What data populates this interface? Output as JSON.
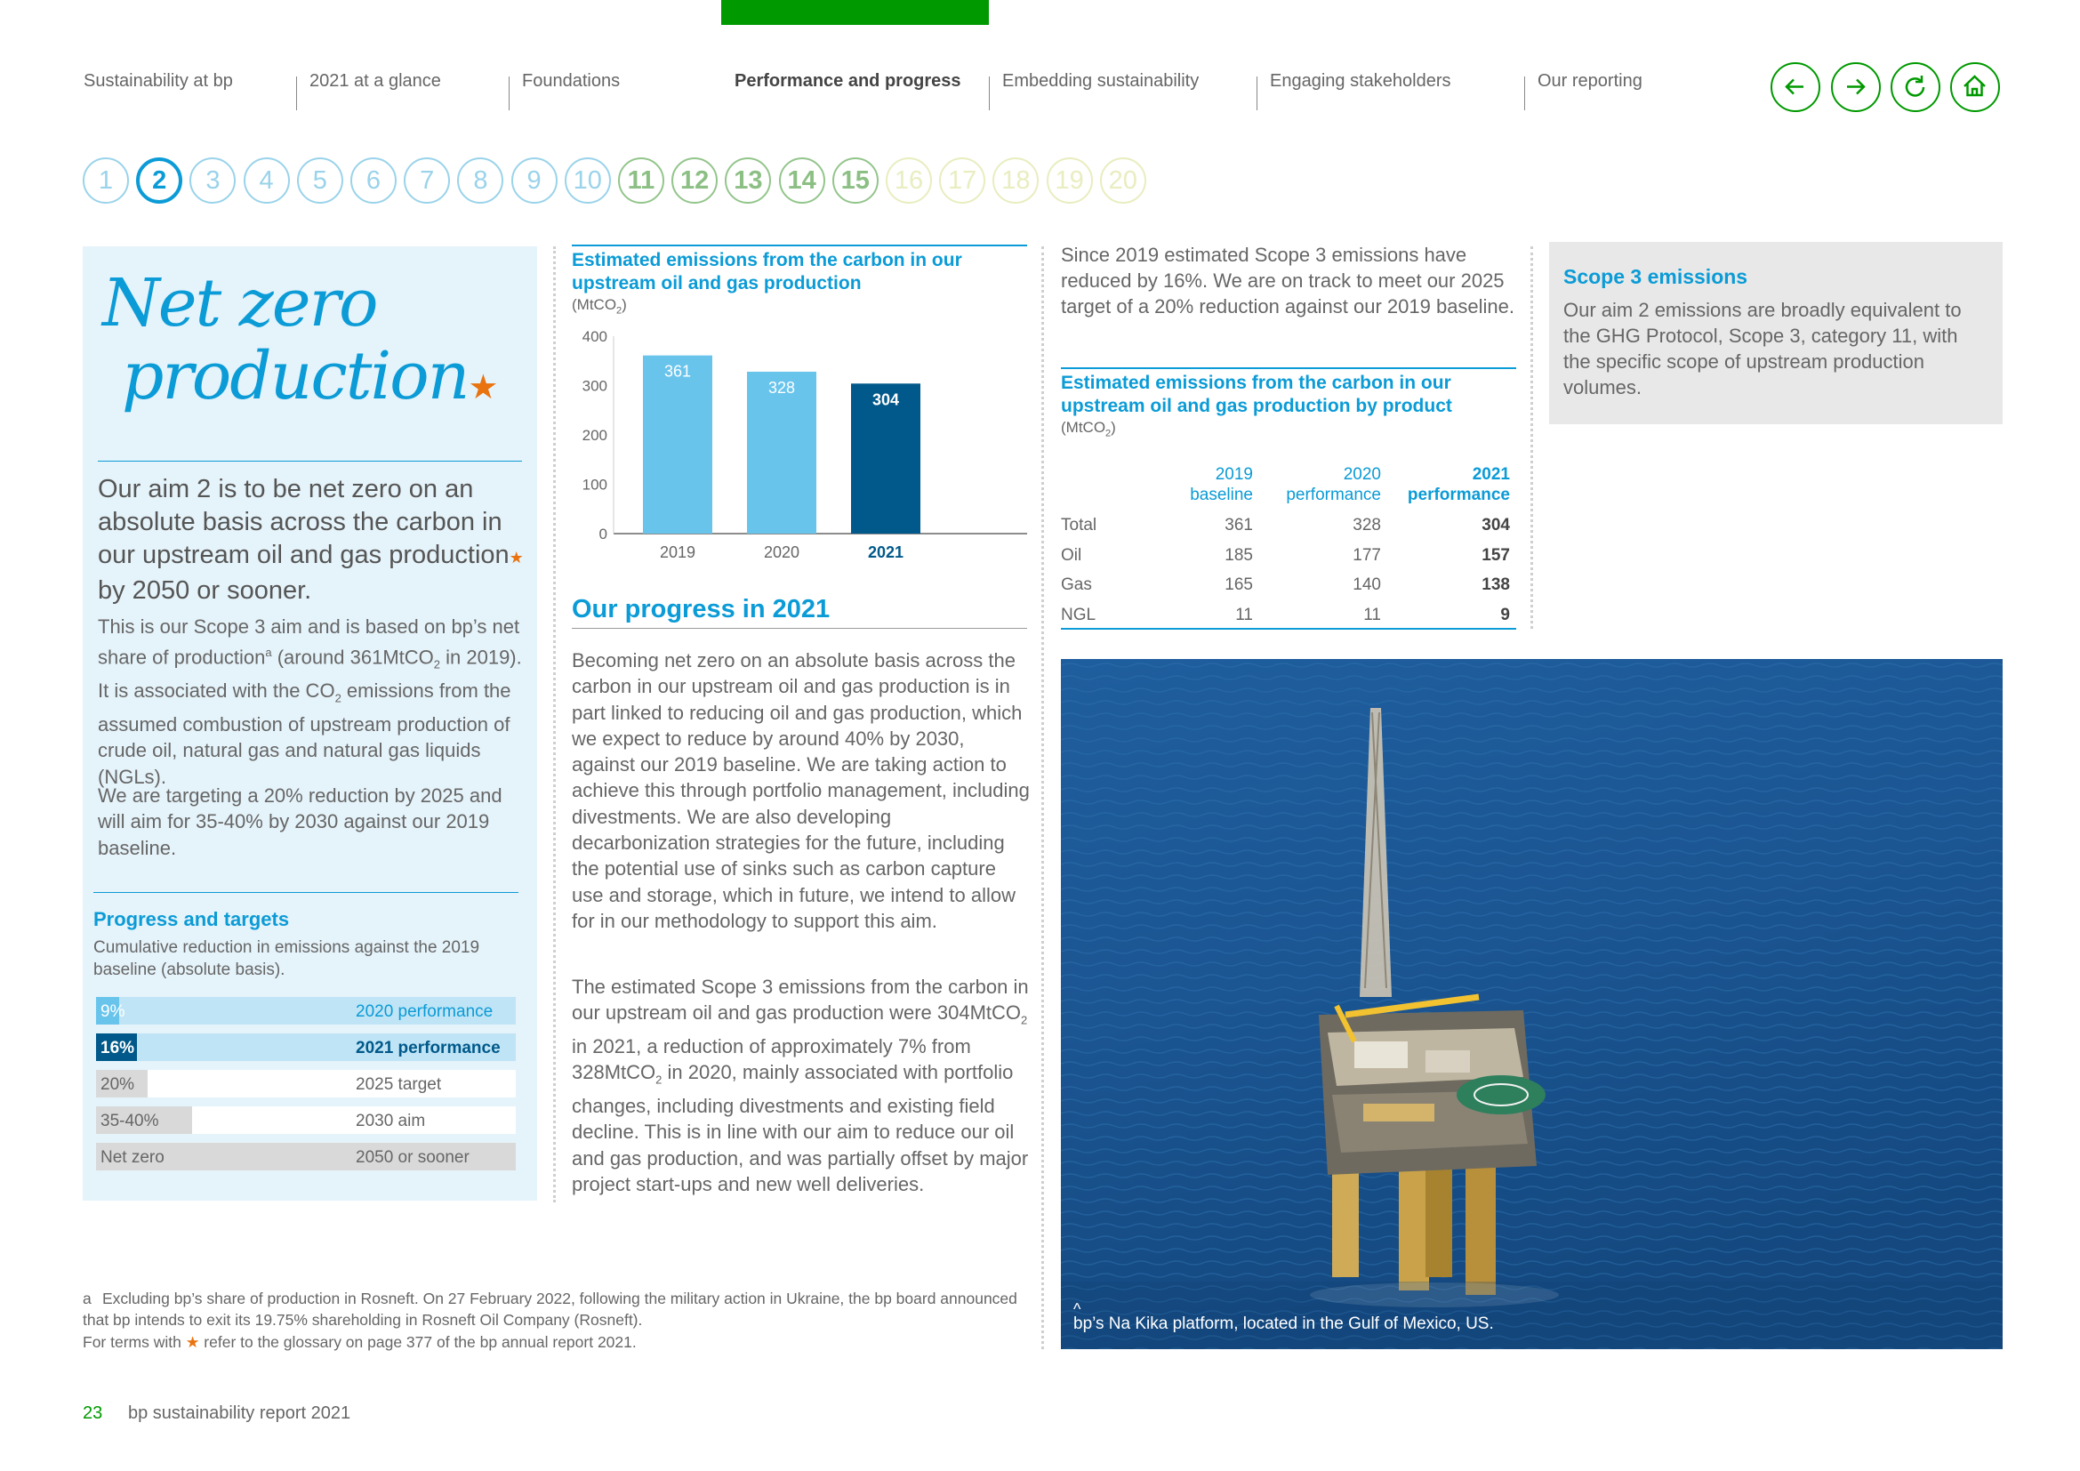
{
  "nav": {
    "items": [
      "Sustainability at bp",
      "2021 at a glance",
      "Foundations",
      "Performance and progress",
      "Embedding sustainability",
      "Engaging stakeholders",
      "Our reporting"
    ],
    "active_index": 3,
    "accent": "#009900"
  },
  "goals": [
    "1",
    "2",
    "3",
    "4",
    "5",
    "6",
    "7",
    "8",
    "9",
    "10",
    "11",
    "12",
    "13",
    "14",
    "15",
    "16",
    "17",
    "18",
    "19",
    "20"
  ],
  "current_goal": "2",
  "left": {
    "title_line1": "Net zero",
    "title_line2": "production",
    "star": "★",
    "lead_before_star": "Our aim 2 is to be net zero on an absolute basis across the carbon in our upstream oil and gas production",
    "lead_after_star": " by 2050 or sooner.",
    "p1_a": "This is our Scope 3 aim and is based on bp’s net share of production",
    "p1_sup": "a",
    "p1_b": " (around 361MtCO",
    "p1_sub": "2",
    "p1_c": " in 2019). It is associated with the CO",
    "p1_sub2": "2",
    "p1_d": " emissions from the assumed combustion of upstream production of crude oil, natural gas and natural gas liquids (NGLs).",
    "p2": "We are targeting a 20% reduction by 2025 and will aim for 35-40% by 2030 against our 2019 baseline.",
    "progress_title": "Progress and targets",
    "progress_sub": "Cumulative reduction in emissions against the 2019 baseline (absolute basis).",
    "progress_rows": [
      {
        "value": "9%",
        "label": "2020 performance",
        "fraction": 0.09
      },
      {
        "value": "16%",
        "label": "2021 performance",
        "fraction": 0.16
      },
      {
        "value": "20%",
        "label": "2025 target",
        "fraction": 0.2
      },
      {
        "value": "35-40%",
        "label": "2030 aim",
        "fraction": 0.375
      },
      {
        "value": "Net zero",
        "label": "2050 or sooner",
        "fraction": 1.0
      }
    ]
  },
  "chart_data": {
    "type": "bar",
    "title": "Estimated emissions from the carbon in our upstream oil and gas production",
    "unit_a": "(MtCO",
    "unit_sub": "2",
    "unit_b": ")",
    "categories": [
      "2019",
      "2020",
      "2021"
    ],
    "values": [
      361,
      328,
      304
    ],
    "yticks": [
      "400",
      "300",
      "200",
      "100",
      "0"
    ],
    "ylim": [
      0,
      400
    ],
    "colors": [
      "#69c4ec",
      "#69c4ec",
      "#00598a"
    ],
    "grid": false
  },
  "middle": {
    "progress_heading": "Our progress in 2021",
    "p1": "Becoming net zero on an absolute basis across the carbon in our upstream oil and gas production is in part linked to reducing oil and gas production, which we expect to reduce by around 40% by 2030, against our 2019 baseline. We are taking action to achieve this through portfolio management, including divestments. We are also developing decarbonization strategies for the future, including the potential use of sinks such as carbon capture use and storage, which in future, we intend to allow for in our methodology to support this aim.",
    "p2_a": "The estimated Scope 3 emissions from the carbon in our upstream oil and gas production were 304MtCO",
    "p2_sub": "2",
    "p2_b": " in 2021, a reduction of approximately 7% from 328MtCO",
    "p2_sub2": "2",
    "p2_c": " in 2020, mainly associated with portfolio changes, including divestments and existing field decline. This is in line with our aim to reduce our oil and gas production, and was partially offset by major project start-ups and new well deliveries."
  },
  "right": {
    "intro": "Since 2019 estimated Scope 3 emissions have reduced by 16%. We are on track to meet our 2025 target of a 20% reduction against our 2019 baseline.",
    "table_title": "Estimated emissions from the carbon in our upstream oil and gas production by product",
    "table_unit_a": "(MtCO",
    "table_unit_sub": "2",
    "table_unit_b": ")",
    "headers": [
      [
        "2019",
        "baseline"
      ],
      [
        "2020",
        "performance"
      ],
      [
        "2021",
        "performance"
      ]
    ],
    "rows": [
      {
        "label": "Total",
        "v": [
          "361",
          "328",
          "304"
        ]
      },
      {
        "label": "Oil",
        "v": [
          "185",
          "177",
          "157"
        ]
      },
      {
        "label": "Gas",
        "v": [
          "165",
          "140",
          "138"
        ]
      },
      {
        "label": "NGL",
        "v": [
          "11",
          "11",
          "9"
        ]
      }
    ],
    "box_title": "Scope 3 emissions",
    "box_text": "Our aim 2 emissions are broadly equivalent to the GHG Protocol, Scope 3, category 11, with the specific scope of upstream production volumes.",
    "photo_caption": "bp’s Na Kika platform, located in the Gulf of Mexico, US.",
    "photo_caret": "^"
  },
  "footnotes": {
    "a_mark": "a",
    "a_text": "Excluding bp’s share of production in Rosneft. On 27 February 2022, following the military action in Ukraine, the bp board announced that bp intends to exit its 19.75% shareholding in Rosneft Oil Company (Rosneft).",
    "terms_a": "For terms with ",
    "terms_star": "★",
    "terms_b": " refer to the glossary on page 377 of the bp annual report 2021."
  },
  "page": {
    "number": "23",
    "report": "bp sustainability report 2021"
  }
}
